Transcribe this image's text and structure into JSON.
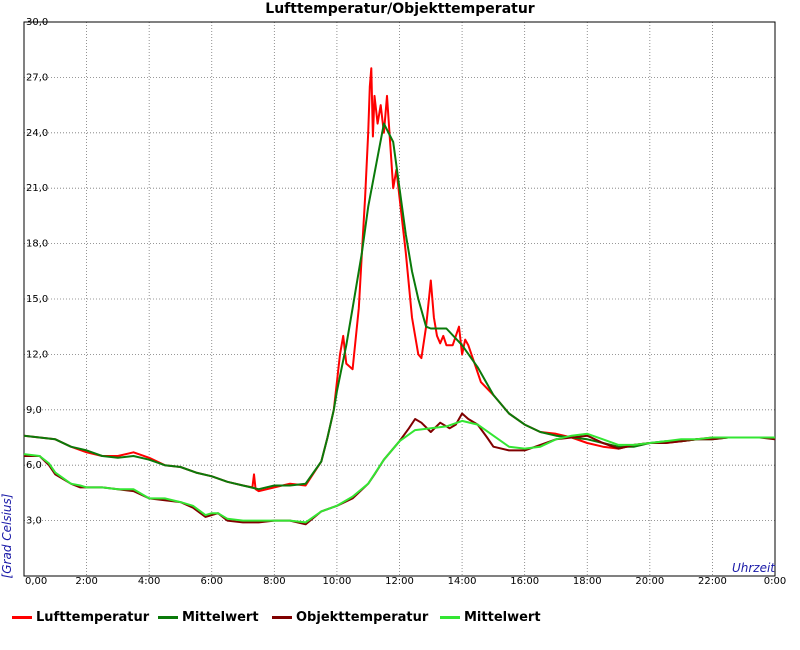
{
  "chart_data": {
    "type": "line",
    "title": "Lufttemperatur/Objekttemperatur",
    "xlabel": "Uhrzeit",
    "ylabel": "[Grad Celsius]",
    "xlim": [
      0,
      24
    ],
    "ylim": [
      0,
      30
    ],
    "x_ticks": [
      "0,00",
      "2:00",
      "4:00",
      "6:00",
      "8:00",
      "10:00",
      "12:00",
      "14:00",
      "16:00",
      "18:00",
      "20:00",
      "22:00",
      "0:00"
    ],
    "y_ticks": [
      "3,0",
      "6,0",
      "9,0",
      "12,0",
      "15,0",
      "18,0",
      "21,0",
      "24,0",
      "27,0",
      "30,0"
    ],
    "grid": true,
    "legend_position": "bottom",
    "series": [
      {
        "name": "Lufttemperatur",
        "color": "#ff0000",
        "x": [
          0,
          0.5,
          1.0,
          1.5,
          2.0,
          2.5,
          3.0,
          3.5,
          4.0,
          4.5,
          5.0,
          5.5,
          6.0,
          6.5,
          7.0,
          7.3,
          7.35,
          7.4,
          7.5,
          8.0,
          8.5,
          9.0,
          9.5,
          9.7,
          9.9,
          10.0,
          10.1,
          10.2,
          10.3,
          10.5,
          10.7,
          10.8,
          10.9,
          11.0,
          11.05,
          11.1,
          11.15,
          11.2,
          11.3,
          11.4,
          11.5,
          11.6,
          11.7,
          11.8,
          11.9,
          12.0,
          12.2,
          12.4,
          12.6,
          12.7,
          12.85,
          13.0,
          13.1,
          13.2,
          13.3,
          13.4,
          13.5,
          13.7,
          13.9,
          14.0,
          14.1,
          14.2,
          14.4,
          14.6,
          15.0,
          15.5,
          16.0,
          16.5,
          17.0,
          17.5,
          18.0,
          18.5,
          19.0,
          19.5,
          20.0,
          20.5,
          21.0,
          21.5,
          22.0,
          22.5,
          23.0,
          23.5,
          24.0
        ],
        "y": [
          7.6,
          7.5,
          7.4,
          7.0,
          6.7,
          6.5,
          6.5,
          6.7,
          6.4,
          6.0,
          5.9,
          5.6,
          5.4,
          5.1,
          4.9,
          4.8,
          5.5,
          4.7,
          4.6,
          4.8,
          5.0,
          4.9,
          6.2,
          7.5,
          9.0,
          10.5,
          12.0,
          13.0,
          11.5,
          11.2,
          14.5,
          17.5,
          20.5,
          24.0,
          26.5,
          27.5,
          23.8,
          26.0,
          24.5,
          25.5,
          24.0,
          26.0,
          23.5,
          21.0,
          22.0,
          20.5,
          17.5,
          14.0,
          12.0,
          11.8,
          13.5,
          16.0,
          14.0,
          13.0,
          12.6,
          13.0,
          12.5,
          12.5,
          13.5,
          12.0,
          12.8,
          12.5,
          11.5,
          10.5,
          9.8,
          8.8,
          8.2,
          7.8,
          7.7,
          7.5,
          7.2,
          7.0,
          6.9,
          7.1,
          7.2,
          7.2,
          7.3,
          7.4,
          7.5,
          7.5,
          7.5,
          7.5,
          7.5
        ]
      },
      {
        "name": "Mittelwert",
        "color": "#0a7a0a",
        "x": [
          0,
          0.5,
          1.0,
          1.5,
          2.0,
          2.5,
          3.0,
          3.5,
          4.0,
          4.5,
          5.0,
          5.5,
          6.0,
          6.5,
          7.0,
          7.5,
          8.0,
          8.5,
          9.0,
          9.5,
          9.7,
          9.9,
          10.0,
          10.3,
          10.5,
          10.8,
          11.0,
          11.5,
          11.8,
          12.0,
          12.2,
          12.4,
          12.6,
          12.85,
          13.0,
          13.5,
          14.0,
          14.5,
          15.0,
          15.5,
          16.0,
          16.5,
          17.0,
          17.5,
          18.0,
          18.5,
          19.0,
          19.5,
          20.0,
          20.5,
          21.0,
          21.5,
          22.0,
          22.5,
          23.0,
          23.5,
          24.0
        ],
        "y": [
          7.6,
          7.5,
          7.4,
          7.0,
          6.8,
          6.5,
          6.4,
          6.5,
          6.3,
          6.0,
          5.9,
          5.6,
          5.4,
          5.1,
          4.9,
          4.7,
          4.9,
          4.9,
          5.0,
          6.2,
          7.5,
          9.0,
          10.0,
          12.5,
          14.5,
          17.5,
          20.0,
          24.5,
          23.5,
          21.0,
          18.5,
          16.5,
          15.0,
          13.5,
          13.4,
          13.4,
          12.5,
          11.3,
          9.8,
          8.8,
          8.2,
          7.8,
          7.6,
          7.5,
          7.4,
          7.2,
          7.0,
          7.0,
          7.2,
          7.3,
          7.3,
          7.4,
          7.4,
          7.5,
          7.5,
          7.5,
          7.5
        ]
      },
      {
        "name": "Objekttemperatur",
        "color": "#800000",
        "x": [
          0,
          0.5,
          0.8,
          1.0,
          1.5,
          1.8,
          2.0,
          2.5,
          3.0,
          3.5,
          4.0,
          4.5,
          5.0,
          5.4,
          5.8,
          6.0,
          6.2,
          6.5,
          7.0,
          7.5,
          8.0,
          8.5,
          9.0,
          9.5,
          10.0,
          10.5,
          11.0,
          11.2,
          11.5,
          12.0,
          12.3,
          12.5,
          12.7,
          13.0,
          13.3,
          13.6,
          13.8,
          14.0,
          14.2,
          14.5,
          14.8,
          15.0,
          15.5,
          16.0,
          16.5,
          17.0,
          17.5,
          18.0,
          18.5,
          19.0,
          19.5,
          20.0,
          20.5,
          21.0,
          21.5,
          22.0,
          22.5,
          23.0,
          23.5,
          24.0
        ],
        "y": [
          6.5,
          6.5,
          6.0,
          5.5,
          5.0,
          4.8,
          4.8,
          4.8,
          4.7,
          4.6,
          4.2,
          4.1,
          4.0,
          3.7,
          3.2,
          3.3,
          3.4,
          3.0,
          2.9,
          2.9,
          3.0,
          3.0,
          2.8,
          3.5,
          3.8,
          4.2,
          5.0,
          5.5,
          6.3,
          7.3,
          8.0,
          8.5,
          8.3,
          7.8,
          8.3,
          8.0,
          8.2,
          8.8,
          8.5,
          8.2,
          7.5,
          7.0,
          6.8,
          6.8,
          7.1,
          7.4,
          7.5,
          7.6,
          7.2,
          6.9,
          7.1,
          7.2,
          7.2,
          7.3,
          7.4,
          7.4,
          7.5,
          7.5,
          7.5,
          7.4
        ]
      },
      {
        "name": "Mittelwert",
        "color": "#33e633",
        "x": [
          0,
          0.5,
          0.8,
          1.0,
          1.5,
          1.8,
          2.0,
          2.5,
          3.0,
          3.5,
          4.0,
          4.5,
          5.0,
          5.4,
          5.8,
          6.0,
          6.2,
          6.5,
          7.0,
          7.5,
          8.0,
          8.5,
          9.0,
          9.5,
          10.0,
          10.5,
          11.0,
          11.5,
          12.0,
          12.5,
          13.0,
          13.5,
          14.0,
          14.5,
          15.0,
          15.5,
          16.0,
          16.5,
          17.0,
          17.5,
          18.0,
          18.5,
          19.0,
          19.5,
          20.0,
          20.5,
          21.0,
          21.5,
          22.0,
          22.5,
          23.0,
          23.5,
          24.0
        ],
        "y": [
          6.6,
          6.5,
          6.1,
          5.6,
          5.0,
          4.9,
          4.8,
          4.8,
          4.7,
          4.7,
          4.2,
          4.2,
          4.0,
          3.8,
          3.3,
          3.4,
          3.4,
          3.1,
          3.0,
          3.0,
          3.0,
          3.0,
          2.9,
          3.5,
          3.8,
          4.3,
          5.0,
          6.3,
          7.3,
          7.9,
          8.0,
          8.1,
          8.4,
          8.2,
          7.6,
          7.0,
          6.9,
          7.0,
          7.4,
          7.6,
          7.7,
          7.4,
          7.1,
          7.1,
          7.2,
          7.3,
          7.4,
          7.4,
          7.5,
          7.5,
          7.5,
          7.5,
          7.5
        ]
      }
    ]
  }
}
